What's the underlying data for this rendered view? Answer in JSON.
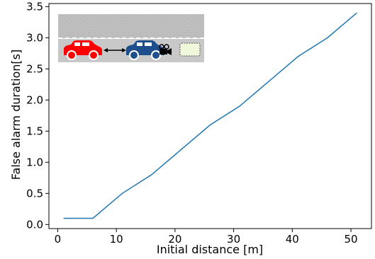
{
  "chart_data": {
    "type": "line",
    "xlabel": "Initial distance [m]",
    "ylabel": "False alarm duration[s]",
    "xlim": [
      -1.5,
      53.5
    ],
    "ylim": [
      -0.065,
      3.55
    ],
    "xticks": [
      0,
      10,
      20,
      30,
      40,
      50
    ],
    "yticks": [
      0.0,
      0.5,
      1.0,
      1.5,
      2.0,
      2.5,
      3.0,
      3.5
    ],
    "xtick_labels": [
      "0",
      "10",
      "20",
      "30",
      "40",
      "50"
    ],
    "ytick_labels": [
      "0.0",
      "0.5",
      "1.0",
      "1.5",
      "2.0",
      "2.5",
      "3.0",
      "3.5"
    ],
    "grid": false,
    "series": [
      {
        "color": "#1f77b4",
        "x": [
          1,
          6,
          11,
          16,
          21,
          26,
          31,
          36,
          41,
          46,
          51
        ],
        "y": [
          0.1,
          0.1,
          0.5,
          0.8,
          1.2,
          1.6,
          1.9,
          2.3,
          2.7,
          3.0,
          3.4
        ]
      }
    ]
  },
  "inset": {
    "road_color": "#c8c8c8",
    "lead_car_color": "#ff0000",
    "ego_car_color": "#1f4e8c",
    "display_color": "#f0f8dc"
  }
}
